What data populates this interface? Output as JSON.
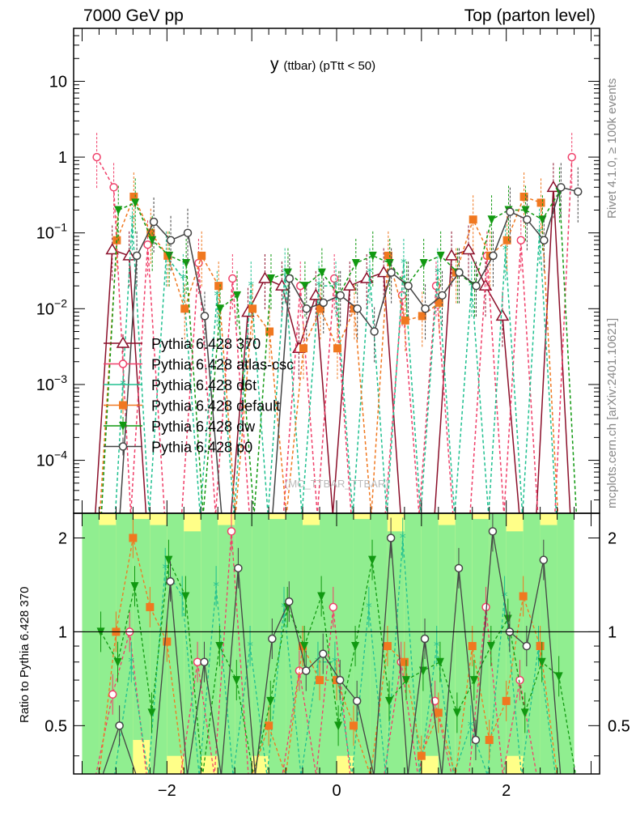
{
  "header": {
    "left": "7000 GeV pp",
    "right": "Top (parton level)"
  },
  "side_labels": {
    "rivet": "Rivet 4.1.0, ≥ 100k events",
    "mcplots": "mcplots.cern.ch [arXiv:2401.10621]"
  },
  "watermark": "(MC_TTBAR_TTBAR)",
  "colors": {
    "p370": "#8b0f2a",
    "atlas": "#f0406a",
    "d6t": "#20c090",
    "default": "#f07820",
    "dw": "#119911",
    "p0": "#444444",
    "band_inner": "#90ee90",
    "band_outer": "#ffff88"
  },
  "chart_data": [
    {
      "type": "line",
      "title": "y (ttbar) (pTtt < 50)",
      "title_main": "y",
      "title_sub": "(ttbar)  (pTtt < 50)",
      "xlabel": "",
      "ylabel": "",
      "yscale": "log",
      "xlim": [
        -3.1,
        3.1
      ],
      "ylim": [
        2e-05,
        50
      ],
      "yticks": [
        0.0001,
        0.001,
        0.01,
        0.1,
        1,
        10
      ],
      "ytick_labels": [
        "10^-4",
        "10^-3",
        "10^-2",
        "10^-1",
        "1",
        "10"
      ],
      "legend_position": "middle-left",
      "x": [
        -2.8,
        -2.6,
        -2.4,
        -2.2,
        -2.0,
        -1.8,
        -1.6,
        -1.4,
        -1.2,
        -1.0,
        -0.8,
        -0.6,
        -0.4,
        -0.2,
        0.0,
        0.2,
        0.4,
        0.6,
        0.8,
        1.0,
        1.2,
        1.4,
        1.6,
        1.8,
        2.0,
        2.2,
        2.4,
        2.6,
        2.8
      ],
      "series": [
        {
          "name": "Pythia 6.428 370",
          "key": "p370",
          "marker": "triangle",
          "values": [
            0,
            0.06,
            0.05,
            0,
            0,
            0,
            0,
            0,
            0,
            0.009,
            0.025,
            0.02,
            0.003,
            0.015,
            0,
            0.02,
            0.025,
            0.03,
            0,
            0,
            0,
            0.05,
            0.06,
            0.02,
            0.008,
            0,
            0,
            0.4,
            0
          ]
        },
        {
          "name": "Pythia 6.428 atlas-csc",
          "key": "atlas",
          "marker": "open-circle",
          "values": [
            1.0,
            0.4,
            0,
            0.07,
            0,
            0,
            0.04,
            0,
            0.025,
            0,
            0,
            0,
            0.02,
            0,
            0.025,
            0,
            0,
            0,
            0.015,
            0,
            0.02,
            0,
            0,
            0.05,
            0,
            0.08,
            0,
            0,
            1.0
          ]
        },
        {
          "name": "Pythia 6.428 d6t",
          "key": "d6t",
          "marker": "star",
          "values": [
            0,
            0,
            0.15,
            0,
            0.05,
            0.025,
            0,
            0.015,
            0,
            0.02,
            0,
            0.03,
            0,
            0.02,
            0.02,
            0,
            0.03,
            0,
            0.04,
            0,
            0.03,
            0,
            0.02,
            0,
            0.06,
            0,
            0.1,
            0,
            0
          ]
        },
        {
          "name": "Pythia 6.428 default",
          "key": "default",
          "marker": "square",
          "values": [
            0,
            0.08,
            0.3,
            0.1,
            0.05,
            0.01,
            0.05,
            0.02,
            0,
            0.01,
            0.005,
            0,
            0.003,
            0.01,
            0.003,
            0.01,
            0,
            0.05,
            0.007,
            0.008,
            0.012,
            0.03,
            0.15,
            0.05,
            0.08,
            0.3,
            0.25,
            0,
            0
          ]
        },
        {
          "name": "Pythia 6.428 dw",
          "key": "dw",
          "marker": "down-triangle",
          "values": [
            0,
            0.2,
            0.25,
            0.08,
            0.05,
            0.04,
            0,
            0.01,
            0.015,
            0,
            0.025,
            0.03,
            0.02,
            0.03,
            0.015,
            0.04,
            0.05,
            0.04,
            0.02,
            0.04,
            0.05,
            0.03,
            0.02,
            0.15,
            0.2,
            0.2,
            0.15,
            0.35,
            0
          ]
        },
        {
          "name": "Pythia 6.428 p0",
          "key": "p0",
          "marker": "open-circle",
          "values": [
            0,
            0,
            0.05,
            0.14,
            0.08,
            0.1,
            0.008,
            0,
            0,
            0,
            0,
            0.025,
            0.01,
            0.012,
            0.015,
            0.01,
            0.005,
            0.03,
            0.02,
            0.01,
            0.015,
            0.03,
            0.02,
            0.05,
            0.19,
            0.15,
            0.08,
            0.4,
            0.35
          ]
        }
      ]
    },
    {
      "type": "line",
      "title": "",
      "ylabel": "Ratio to Pythia 6.428 370",
      "xlabel": "",
      "yscale": "log",
      "xlim": [
        -3.1,
        3.1
      ],
      "ylim": [
        0.35,
        2.4
      ],
      "yticks": [
        0.5,
        1,
        2
      ],
      "ytick_labels": [
        "0.5",
        "1",
        "2"
      ],
      "xticks": [
        -2,
        0,
        2
      ],
      "xtick_labels": [
        "−2",
        "0",
        "2"
      ],
      "reference": 1,
      "band_x": [
        -2.9,
        -2.7,
        -2.5,
        -2.3,
        -2.1,
        -1.9,
        -1.7,
        -1.5,
        -1.3,
        -1.1,
        -0.9,
        -0.7,
        -0.5,
        -0.3,
        -0.1,
        0.1,
        0.3,
        0.5,
        0.7,
        0.9,
        1.1,
        1.3,
        1.5,
        1.7,
        1.9,
        2.1,
        2.3,
        2.5,
        2.7
      ],
      "band_inner": [
        [
          0.35,
          2.4
        ],
        [
          0.35,
          2.2
        ],
        [
          0.35,
          2.4
        ],
        [
          0.45,
          2.3
        ],
        [
          0.35,
          2.2
        ],
        [
          0.4,
          2.4
        ],
        [
          0.35,
          2.1
        ],
        [
          0.4,
          2.4
        ],
        [
          0.35,
          2.2
        ],
        [
          0.35,
          2.4
        ],
        [
          0.4,
          2.4
        ],
        [
          0.35,
          2.3
        ],
        [
          0.35,
          2.4
        ],
        [
          0.35,
          2.2
        ],
        [
          0.35,
          2.4
        ],
        [
          0.4,
          2.4
        ],
        [
          0.35,
          2.3
        ],
        [
          0.35,
          2.4
        ],
        [
          0.35,
          2.1
        ],
        [
          0.35,
          2.4
        ],
        [
          0.4,
          2.4
        ],
        [
          0.35,
          2.2
        ],
        [
          0.35,
          2.4
        ],
        [
          0.35,
          2.3
        ],
        [
          0.35,
          2.4
        ],
        [
          0.4,
          2.1
        ],
        [
          0.35,
          2.4
        ],
        [
          0.35,
          2.2
        ],
        [
          0.35,
          2.4
        ]
      ],
      "band_outer": [
        [
          0.35,
          2.4
        ],
        [
          0.35,
          2.4
        ],
        [
          0.35,
          2.4
        ],
        [
          0.35,
          2.4
        ],
        [
          0.35,
          2.4
        ],
        [
          0.35,
          2.4
        ],
        [
          0.35,
          2.4
        ],
        [
          0.35,
          2.4
        ],
        [
          0.35,
          2.4
        ],
        [
          0.35,
          2.4
        ],
        [
          0.35,
          2.4
        ],
        [
          0.35,
          2.4
        ],
        [
          0.35,
          2.4
        ],
        [
          0.35,
          2.4
        ],
        [
          0.35,
          2.4
        ],
        [
          0.35,
          2.4
        ],
        [
          0.35,
          2.4
        ],
        [
          0.35,
          2.4
        ],
        [
          0.35,
          2.4
        ],
        [
          0.35,
          2.4
        ],
        [
          0.35,
          2.4
        ],
        [
          0.35,
          2.4
        ],
        [
          0.35,
          2.4
        ],
        [
          0.35,
          2.4
        ],
        [
          0.35,
          2.4
        ],
        [
          0.35,
          2.4
        ],
        [
          0.35,
          2.4
        ],
        [
          0.35,
          2.4
        ],
        [
          0.35,
          2.4
        ]
      ],
      "x": [
        -2.8,
        -2.6,
        -2.4,
        -2.2,
        -2.0,
        -1.8,
        -1.6,
        -1.4,
        -1.2,
        -1.0,
        -0.8,
        -0.6,
        -0.4,
        -0.2,
        0.0,
        0.2,
        0.4,
        0.6,
        0.8,
        1.0,
        1.2,
        1.4,
        1.6,
        1.8,
        2.0,
        2.2,
        2.4,
        2.6,
        2.8
      ],
      "series": [
        {
          "key": "atlas",
          "values": [
            0,
            0.63,
            1.0,
            0,
            0,
            0,
            0.8,
            0,
            2.1,
            0,
            0,
            0,
            0.75,
            0,
            1.2,
            0,
            0,
            0,
            0.8,
            0,
            0.6,
            0,
            0,
            1.2,
            0,
            0.7,
            0,
            0,
            0
          ]
        },
        {
          "key": "d6t",
          "values": [
            0,
            0,
            0.8,
            0,
            1.6,
            1.3,
            0,
            1.4,
            0,
            0.9,
            0,
            1.2,
            0,
            0.8,
            0.8,
            0,
            1.2,
            0,
            2.0,
            0,
            0.9,
            0,
            0.5,
            0,
            1.3,
            0,
            0.9,
            0,
            0
          ]
        },
        {
          "key": "default",
          "values": [
            0,
            1.0,
            2.0,
            1.2,
            0.93,
            0,
            0,
            0,
            0,
            0,
            0.5,
            0,
            0.9,
            0.7,
            0.7,
            0.5,
            0,
            0.9,
            0.8,
            0.4,
            0.55,
            0,
            0.9,
            0.45,
            0.6,
            1.3,
            0.9,
            0,
            0
          ]
        },
        {
          "key": "dw",
          "values": [
            1.0,
            0.8,
            1.4,
            0.55,
            1.7,
            1.3,
            0,
            0.9,
            0.7,
            0,
            0.6,
            1.2,
            0.9,
            1.3,
            0.5,
            0.9,
            1.7,
            0.6,
            0.7,
            0.75,
            0.8,
            0.55,
            0.7,
            0.9,
            1.1,
            0.55,
            0.8,
            0.72,
            0
          ]
        },
        {
          "key": "p0",
          "values": [
            0,
            0.5,
            0,
            0,
            1.45,
            0,
            0.8,
            0,
            1.6,
            0,
            0.95,
            1.25,
            0.75,
            0.85,
            0.7,
            0.6,
            0,
            2.0,
            0,
            0.95,
            0,
            1.6,
            0.45,
            2.1,
            1.0,
            0.9,
            1.7,
            0,
            0
          ]
        }
      ]
    }
  ]
}
